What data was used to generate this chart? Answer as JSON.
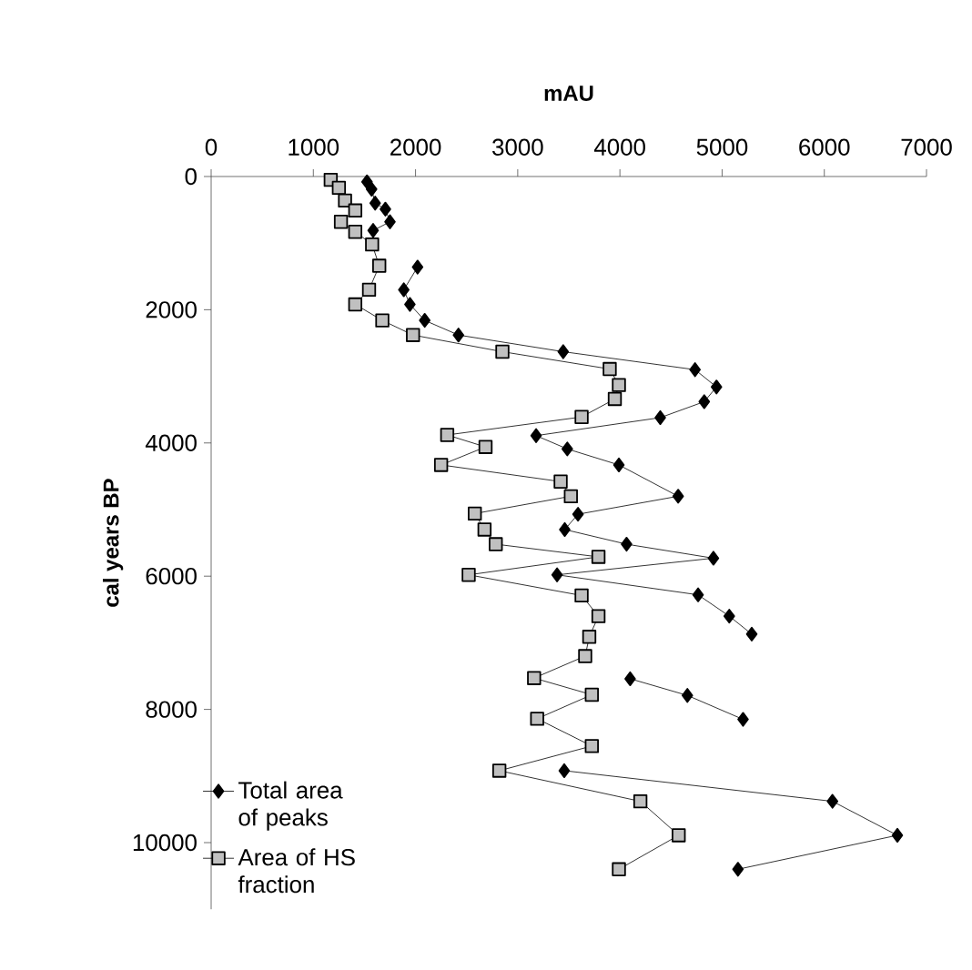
{
  "chart_data": {
    "type": "line",
    "xlabel": "mAU",
    "ylabel": "cal years BP",
    "xlim": [
      0,
      7000
    ],
    "xticks": [
      0,
      1000,
      2000,
      3000,
      4000,
      5000,
      6000,
      7000
    ],
    "ylim": [
      11000,
      0
    ],
    "yticks": [
      0,
      2000,
      4000,
      6000,
      8000,
      10000
    ],
    "grid": false,
    "legend": "bottom left",
    "line_style": "solid",
    "series": [
      {
        "name": "Total area of peaks",
        "color": "#000000",
        "marker": "diamond",
        "x": [
          1525,
          1570,
          1605,
          1705,
          1750,
          1585,
          null,
          2020,
          1885,
          1945,
          2090,
          2420,
          3445,
          4735,
          4945,
          4825,
          4395,
          3180,
          3485,
          3990,
          4570,
          3590,
          3460,
          4065,
          4915,
          3385,
          4765,
          5070,
          5290,
          null,
          4100,
          4660,
          5205,
          null,
          3455,
          6080,
          6715,
          5155
        ],
        "values": [
          80,
          190,
          400,
          490,
          680,
          810,
          null,
          1360,
          1700,
          1920,
          2160,
          2380,
          2630,
          2900,
          3160,
          3380,
          3620,
          3890,
          4090,
          4330,
          4800,
          5070,
          5300,
          5520,
          5730,
          5980,
          6280,
          6600,
          6870,
          null,
          7540,
          7790,
          8150,
          null,
          8920,
          9380,
          9890,
          10400
        ]
      },
      {
        "name": "Area of HS fraction",
        "color": "#c0c0c0",
        "marker": "square",
        "x": [
          1170,
          1250,
          1310,
          1410,
          1270,
          1410,
          1575,
          1645,
          1545,
          1410,
          1675,
          1975,
          2850,
          3900,
          3990,
          3950,
          3625,
          2310,
          2685,
          2250,
          3420,
          3520,
          2580,
          2675,
          2785,
          3790,
          2520,
          3625,
          3790,
          3700,
          3660,
          3160,
          3725,
          3190,
          3725,
          2820,
          4200,
          4575,
          3990
        ],
        "values": [
          50,
          170,
          360,
          510,
          680,
          830,
          1020,
          1340,
          1700,
          1920,
          2160,
          2380,
          2630,
          2890,
          3130,
          3340,
          3610,
          3880,
          4060,
          4330,
          4580,
          4800,
          5060,
          5300,
          5520,
          5710,
          5980,
          6290,
          6600,
          6910,
          7200,
          7530,
          7780,
          8140,
          8550,
          8920,
          9380,
          9890,
          10400
        ]
      }
    ]
  }
}
